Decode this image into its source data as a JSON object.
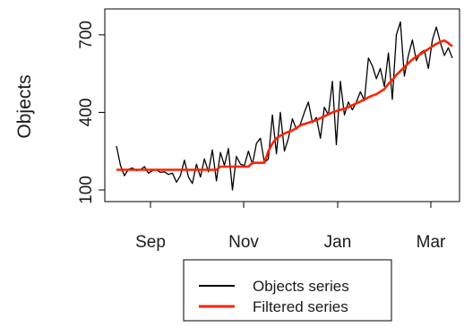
{
  "chart_data": {
    "type": "line",
    "ylabel": "Objects",
    "xlabel": "",
    "title": "",
    "x_tick_labels": [
      "Sep",
      "Nov",
      "Jan",
      "Mar"
    ],
    "y_ticks": [
      100,
      400,
      700
    ],
    "ylim": [
      55,
      800
    ],
    "grid": false,
    "legend_position": "bottom",
    "series": [
      {
        "name": "Objects series",
        "color": "#000000",
        "values": [
          270,
          195,
          155,
          180,
          185,
          175,
          178,
          190,
          165,
          175,
          178,
          168,
          170,
          160,
          165,
          130,
          155,
          215,
          150,
          125,
          200,
          150,
          220,
          170,
          255,
          135,
          245,
          195,
          260,
          100,
          230,
          200,
          195,
          250,
          200,
          280,
          300,
          205,
          220,
          390,
          240,
          400,
          250,
          300,
          375,
          335,
          355,
          400,
          440,
          360,
          380,
          300,
          420,
          390,
          520,
          275,
          520,
          390,
          440,
          410,
          440,
          480,
          445,
          610,
          580,
          530,
          570,
          500,
          630,
          450,
          700,
          750,
          540,
          620,
          680,
          600,
          630,
          640,
          570,
          680,
          730,
          670,
          620,
          650,
          610
        ]
      },
      {
        "name": "Filtered series",
        "color": "#ff2200",
        "values": [
          178,
          178,
          178,
          178,
          178,
          178,
          178,
          178,
          178,
          178,
          178,
          178,
          178,
          178,
          178,
          178,
          178,
          178,
          178,
          178,
          178,
          178,
          178,
          178,
          178,
          178,
          190,
          190,
          190,
          190,
          190,
          190,
          190,
          190,
          205,
          205,
          205,
          205,
          250,
          280,
          300,
          310,
          318,
          325,
          330,
          340,
          350,
          355,
          360,
          365,
          370,
          378,
          385,
          392,
          400,
          405,
          410,
          415,
          420,
          428,
          435,
          442,
          450,
          458,
          465,
          470,
          480,
          490,
          510,
          525,
          545,
          560,
          575,
          590,
          605,
          615,
          625,
          635,
          645,
          655,
          665,
          672,
          678,
          668,
          655
        ]
      }
    ],
    "legend": [
      "Objects series",
      "Filtered series"
    ]
  }
}
